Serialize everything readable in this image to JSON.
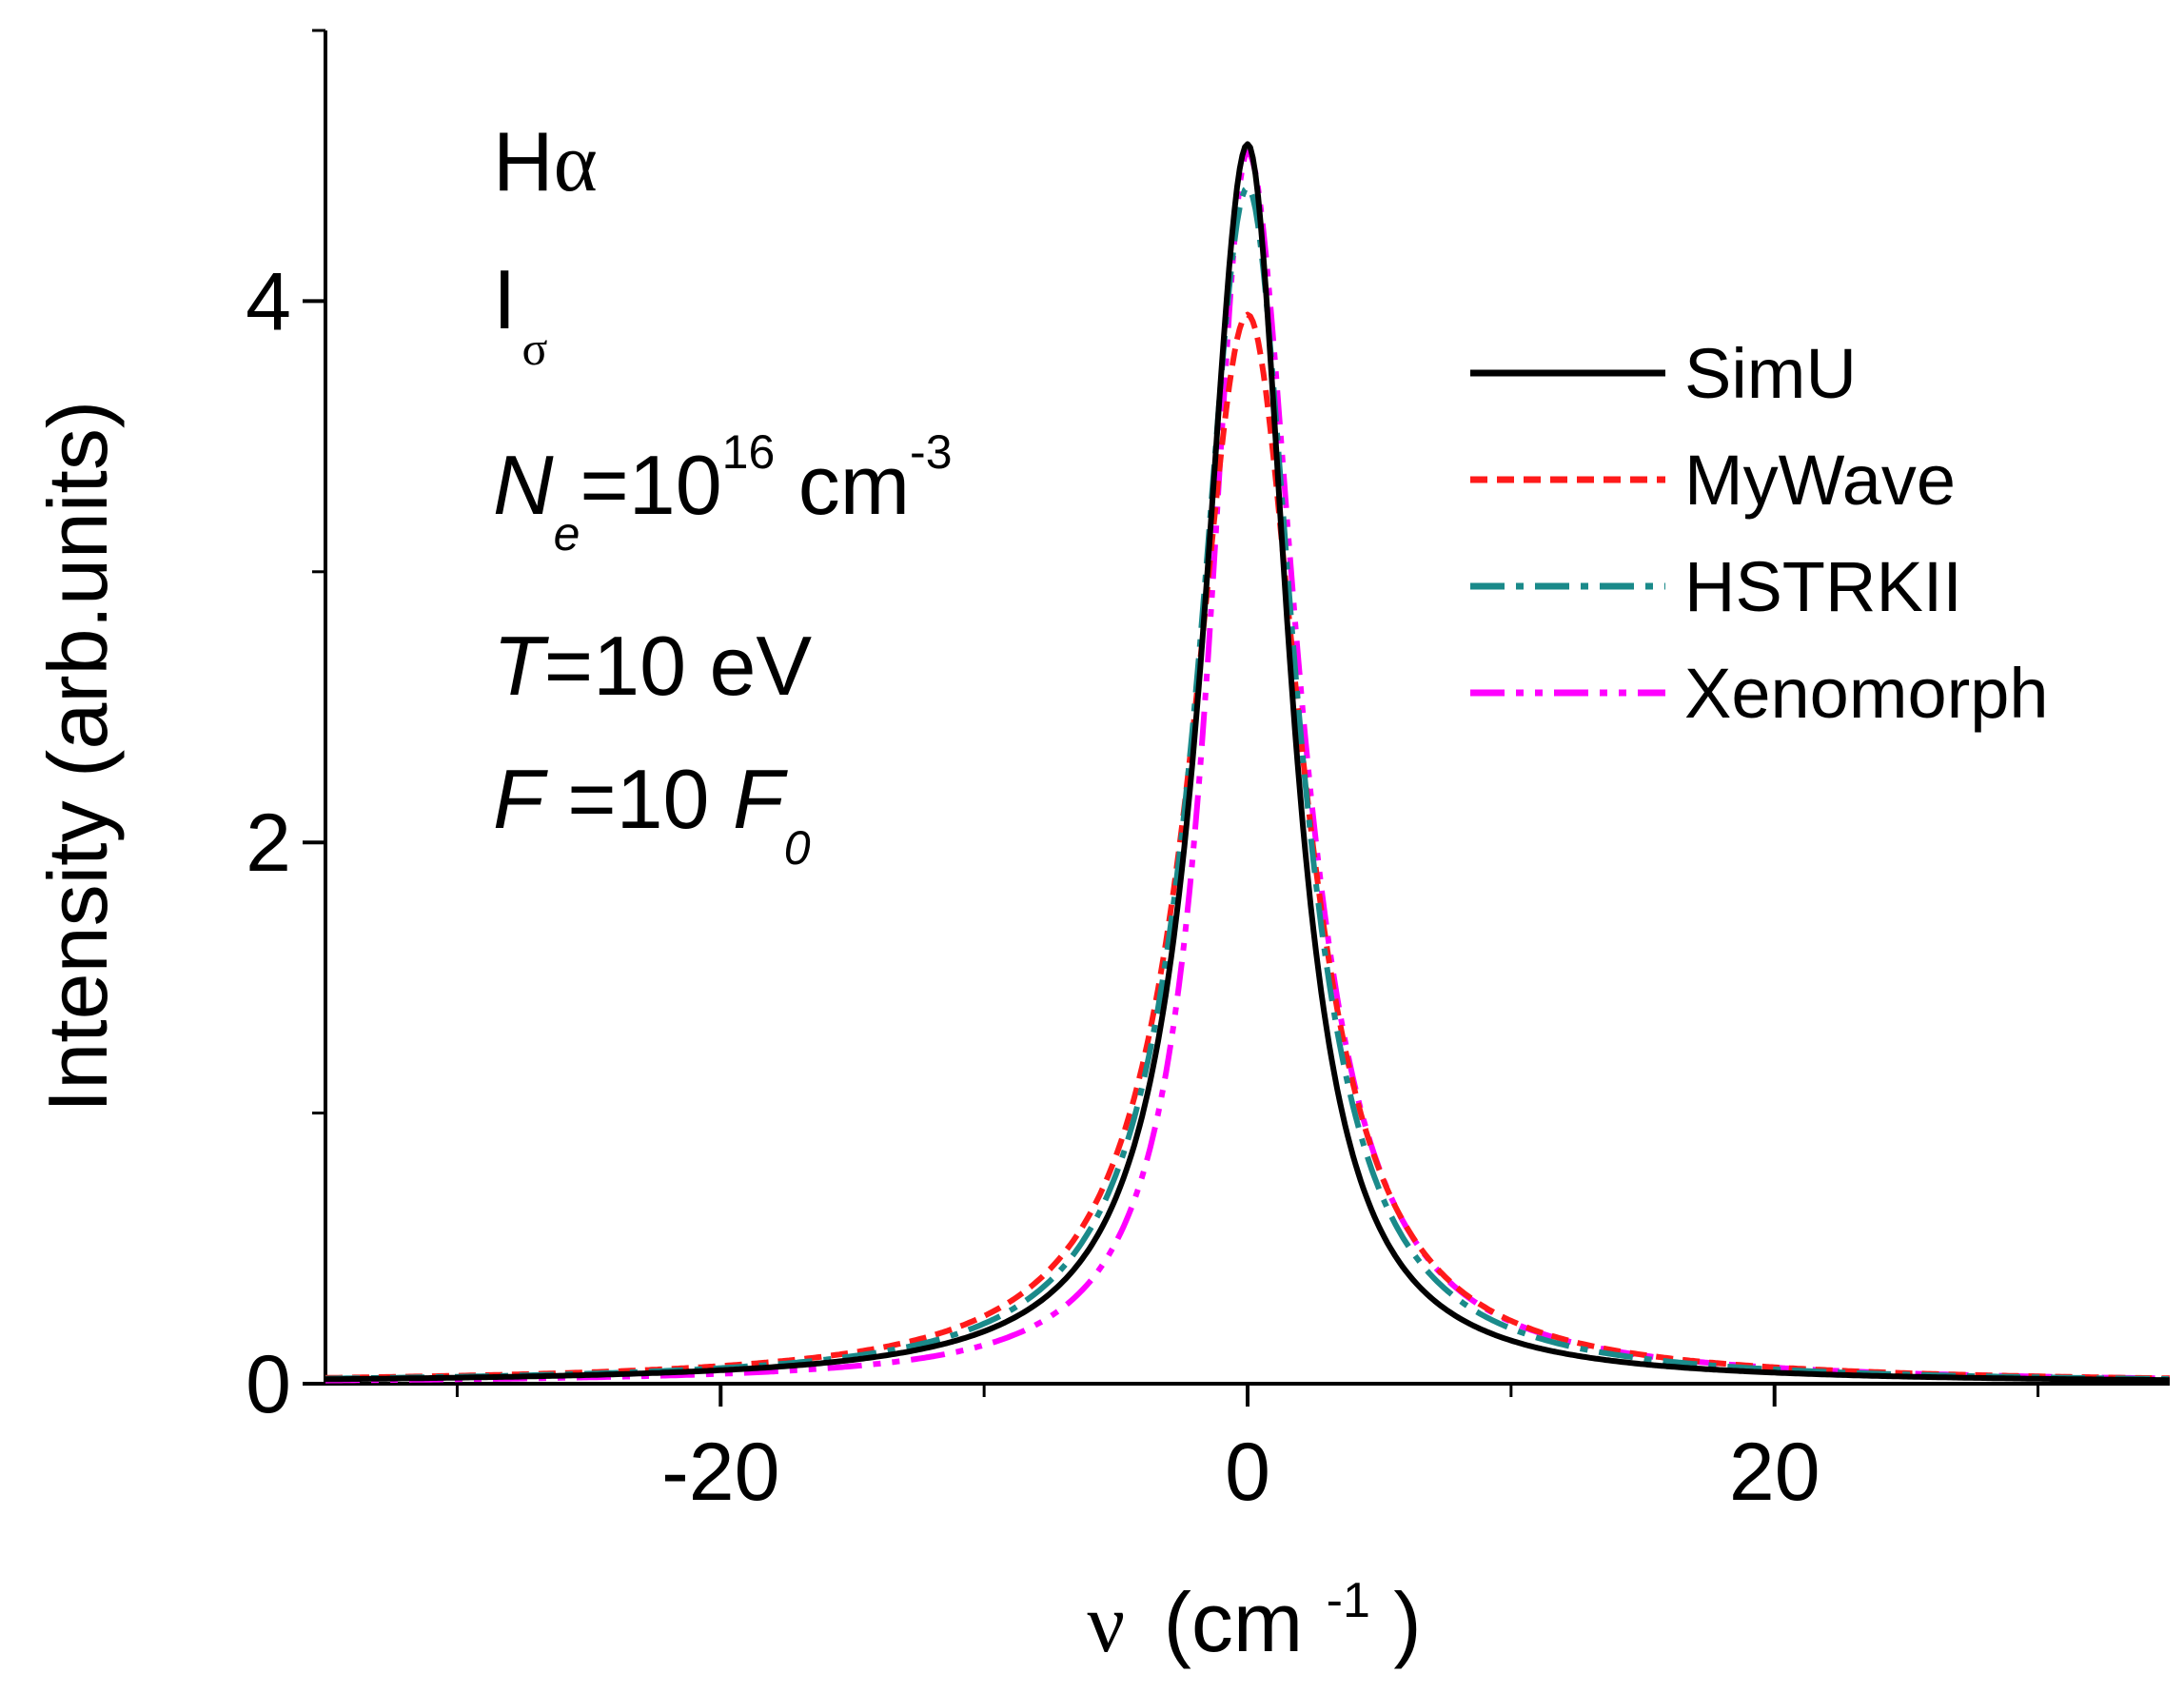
{
  "chart_data": {
    "type": "line",
    "title": "",
    "xlabel": {
      "symbol": "ν",
      "unit_prefix": "(cm",
      "unit_exp": "-1",
      "unit_suffix": ")"
    },
    "ylabel": "Intensity (arb.units)",
    "xlim": [
      -35,
      35
    ],
    "ylim": [
      0,
      5
    ],
    "x_major_ticks": [
      -20,
      0,
      20
    ],
    "x_major_tick_labels": [
      "-20",
      "0",
      "20"
    ],
    "x_minor_ticks": [
      -30,
      -10,
      10,
      30
    ],
    "y_major_ticks": [
      0,
      2,
      4
    ],
    "y_major_tick_labels": [
      "0",
      "2",
      "4"
    ],
    "y_minor_ticks": [
      1,
      3
    ],
    "grid": false,
    "legend_position": "upper-right",
    "annotations": {
      "line": {
        "main": "H",
        "greek": "α"
      },
      "component": {
        "main": "I",
        "sub": "σ"
      },
      "density": {
        "var": "N",
        "sub": "e",
        "eq": "=10",
        "exp": "16",
        "unit": " cm",
        "unit_exp": "-3"
      },
      "temperature": {
        "var": "T",
        "rest": "=10 eV"
      },
      "field": {
        "var": "F",
        "eq": " =10 ",
        "var2": "F",
        "sub": "0"
      }
    },
    "series": [
      {
        "name": "SimU",
        "color": "#000000",
        "dash": "solid",
        "peak": 4.58,
        "hwhm_left": 2.1,
        "hwhm_right": 1.9,
        "tail": 0.0
      },
      {
        "name": "MyWave",
        "color": "#ff1a1a",
        "dash": "dashed",
        "peak": 3.95,
        "hwhm_left": 2.6,
        "hwhm_right": 2.5,
        "tail": 0.0
      },
      {
        "name": "HSTRKII",
        "color": "#1a8a8a",
        "dash": "dashdot",
        "peak": 4.42,
        "hwhm_left": 2.3,
        "hwhm_right": 2.2,
        "tail": 0.0
      },
      {
        "name": "Xenomorph",
        "color": "#ff00ff",
        "dash": "dashdotdot",
        "peak": 4.55,
        "hwhm_left": 1.8,
        "hwhm_right": 2.3,
        "tail": 0.0
      }
    ]
  }
}
